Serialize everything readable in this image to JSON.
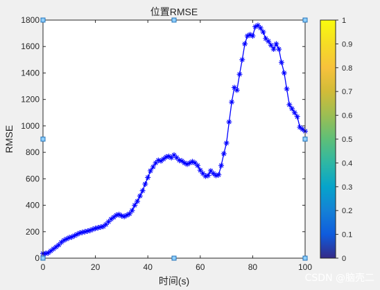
{
  "chart_data": {
    "type": "line",
    "title": "位置RMSE",
    "xlabel": "时间(s)",
    "ylabel": "RMSE",
    "xlim": [
      0,
      100
    ],
    "ylim": [
      0,
      1800
    ],
    "xticks": [
      0,
      20,
      40,
      60,
      80,
      100
    ],
    "yticks": [
      0,
      200,
      400,
      600,
      800,
      1000,
      1200,
      1400,
      1600,
      1800
    ],
    "grid": false,
    "marker": "asterisk",
    "line_color": "#0000ff",
    "series": [
      {
        "x": [
          0,
          1,
          2,
          3,
          4,
          5,
          6,
          7,
          8,
          9,
          10,
          11,
          12,
          13,
          14,
          15,
          16,
          17,
          18,
          19,
          20,
          21,
          22,
          23,
          24,
          25,
          26,
          27,
          28,
          29,
          30,
          31,
          32,
          33,
          34,
          35,
          36,
          37,
          38,
          39,
          40,
          41,
          42,
          43,
          44,
          45,
          46,
          47,
          48,
          49,
          50,
          51,
          52,
          53,
          54,
          55,
          56,
          57,
          58,
          59,
          60,
          61,
          62,
          63,
          64,
          65,
          66,
          67,
          68,
          69,
          70,
          71,
          72,
          73,
          74,
          75,
          76,
          77,
          78,
          79,
          80,
          81,
          82,
          83,
          84,
          85,
          86,
          87,
          88,
          89,
          90,
          91,
          92,
          93,
          94,
          95,
          96,
          97,
          98,
          99,
          100
        ],
        "y": [
          35,
          35,
          40,
          55,
          70,
          85,
          100,
          120,
          135,
          145,
          155,
          160,
          170,
          180,
          190,
          195,
          200,
          205,
          210,
          218,
          225,
          230,
          235,
          240,
          255,
          275,
          295,
          310,
          325,
          330,
          320,
          315,
          325,
          335,
          360,
          400,
          430,
          470,
          510,
          560,
          610,
          660,
          690,
          720,
          740,
          735,
          750,
          765,
          770,
          760,
          780,
          760,
          740,
          735,
          720,
          710,
          720,
          730,
          720,
          700,
          665,
          640,
          620,
          625,
          660,
          640,
          625,
          630,
          700,
          790,
          870,
          1030,
          1180,
          1290,
          1270,
          1390,
          1500,
          1620,
          1680,
          1690,
          1680,
          1750,
          1760,
          1740,
          1710,
          1660,
          1640,
          1610,
          1580,
          1620,
          1580,
          1480,
          1400,
          1280,
          1160,
          1130,
          1100,
          1070,
          990,
          975,
          960
        ]
      }
    ],
    "colorbar": {
      "ticks": [
        "0",
        "0.1",
        "0.2",
        "0.3",
        "0.4",
        "0.5",
        "0.6",
        "0.7",
        "0.8",
        "0.9",
        "1"
      ],
      "min": 0,
      "max": 1
    }
  },
  "watermark": "CSDN @脑壳二"
}
